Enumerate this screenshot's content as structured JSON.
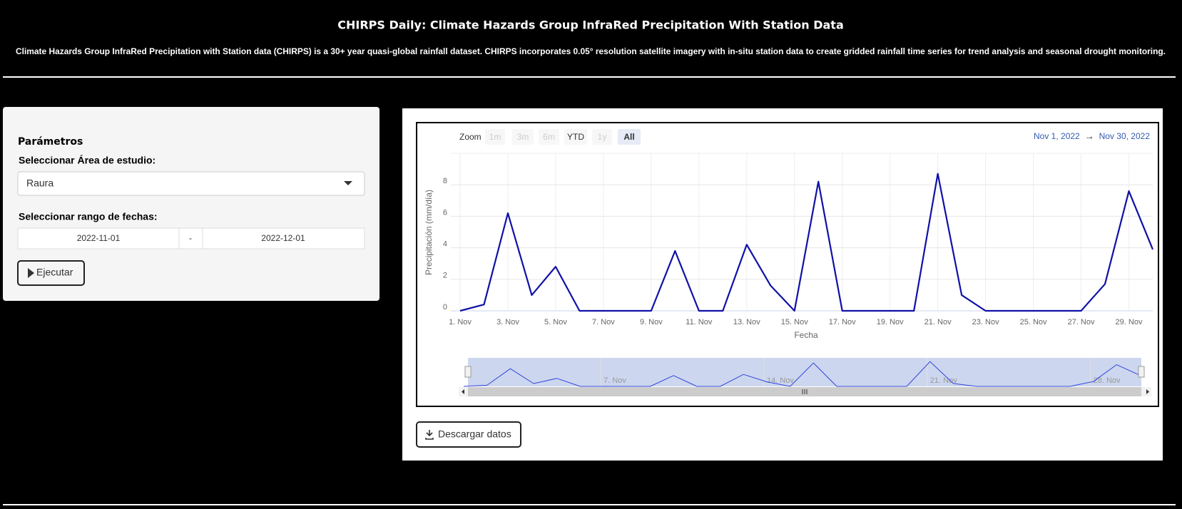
{
  "header": {
    "title": "CHIRPS Daily: Climate Hazards Group InfraRed Precipitation With Station Data",
    "description": "Climate Hazards Group InfraRed Precipitation with Station data (CHIRPS) is a 30+ year quasi-global rainfall dataset. CHIRPS incorporates 0.05° resolution satellite imagery with in-situ station data to create gridded rainfall time series for trend analysis and seasonal drought monitoring."
  },
  "sidebar": {
    "heading": "Parámetros",
    "area_label": "Seleccionar Área de estudio:",
    "area_value": "Raura",
    "date_label": "Seleccionar rango de fechas:",
    "date_start": "2022-11-01",
    "date_separator": "-",
    "date_end": "2022-12-01",
    "run_button": "Ejecutar"
  },
  "chart_data": {
    "type": "line",
    "zoom_label": "Zoom",
    "zoom_buttons": [
      "1m",
      "3m",
      "6m",
      "YTD",
      "1y",
      "All"
    ],
    "range_start": "Nov 1, 2022",
    "range_arrow": "→",
    "range_end": "Nov 30, 2022",
    "x_label": "Fecha",
    "y_label": "Precipitación (mm/día)",
    "categories": [
      "1. Nov",
      null,
      "3. Nov",
      null,
      "5. Nov",
      null,
      "7. Nov",
      null,
      "9. Nov",
      null,
      "11. Nov",
      null,
      "13. Nov",
      null,
      "15. Nov",
      null,
      "17. Nov",
      null,
      "19. Nov",
      null,
      "21. Nov",
      null,
      "23. Nov",
      null,
      "25. Nov",
      null,
      "27. Nov",
      null,
      "29. Nov",
      null
    ],
    "values": [
      0,
      0.4,
      6.2,
      1.0,
      2.8,
      0,
      0,
      0,
      0,
      3.8,
      0,
      0,
      4.2,
      1.6,
      0,
      8.2,
      0,
      0,
      0,
      0,
      8.7,
      1.0,
      0,
      0,
      0,
      0,
      0,
      1.7,
      7.6,
      3.9
    ],
    "color": "#1010a8",
    "ylim": [
      0,
      10
    ],
    "yticks": [
      0,
      2,
      4,
      6,
      8
    ],
    "grid": true,
    "navigator_labels": [
      "7. Nov",
      "14. Nov",
      "21. Nov",
      "28. Nov"
    ]
  },
  "download_button": "Descargar datos"
}
